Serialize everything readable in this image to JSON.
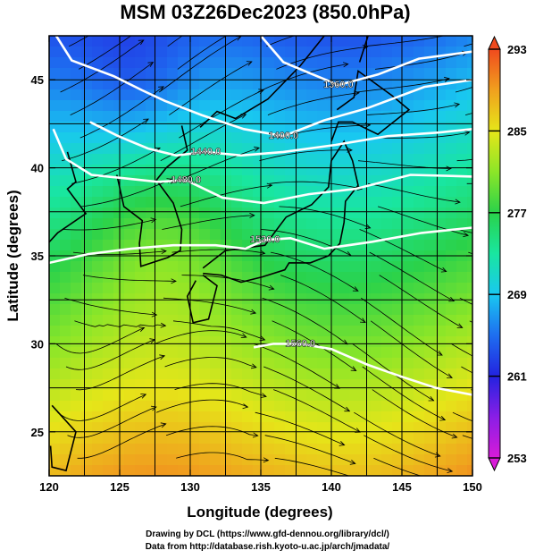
{
  "chart_data": {
    "type": "heatmap",
    "title": "MSM 03Z26Dec2023 (850.0hPa)",
    "xlabel": "Longitude (degrees)",
    "ylabel": "Latitude  (degrees)",
    "xlim": [
      120,
      150
    ],
    "ylim": [
      22.5,
      47.5
    ],
    "xticks": [
      120,
      125,
      130,
      135,
      140,
      145,
      150
    ],
    "yticks": [
      25,
      30,
      35,
      40,
      45
    ],
    "colorbar": {
      "min": 253,
      "max": 293,
      "ticks": [
        253,
        261,
        269,
        277,
        285,
        293
      ],
      "colors": [
        "#d81bd8",
        "#8a1ee6",
        "#2323e0",
        "#1e6ef0",
        "#19c8f0",
        "#19e6a0",
        "#2ad24a",
        "#8ce628",
        "#e6e619",
        "#f0a01e",
        "#f04a1e"
      ]
    },
    "contour_labels": [
      {
        "text": "1360.0",
        "lon": 140.5,
        "lat": 44.7
      },
      {
        "text": "1400.0",
        "lon": 136.6,
        "lat": 41.8
      },
      {
        "text": "1440.0",
        "lon": 131.1,
        "lat": 40.9
      },
      {
        "text": "1480.0",
        "lon": 129.7,
        "lat": 39.3
      },
      {
        "text": "1520.0",
        "lon": 135.3,
        "lat": 35.9
      },
      {
        "text": "1560.0",
        "lon": 137.8,
        "lat": 30.0
      }
    ],
    "contours": [
      {
        "level": "1360.0",
        "points": [
          [
            135.0,
            47.5
          ],
          [
            136.6,
            46.0
          ],
          [
            138.7,
            45.3
          ],
          [
            140.5,
            44.7
          ],
          [
            143.3,
            45.3
          ],
          [
            146.2,
            46.2
          ],
          [
            150.0,
            46.6
          ]
        ]
      },
      {
        "level": "1400.0",
        "points": [
          [
            120.5,
            47.5
          ],
          [
            121.6,
            46.1
          ],
          [
            124.6,
            45.2
          ],
          [
            126.6,
            44.4
          ],
          [
            128.2,
            43.8
          ],
          [
            130.8,
            43.0
          ],
          [
            133.8,
            42.2
          ],
          [
            136.6,
            41.8
          ],
          [
            139.5,
            42.7
          ],
          [
            142.6,
            43.4
          ],
          [
            146.6,
            44.6
          ],
          [
            150.0,
            45.0
          ]
        ]
      },
      {
        "level": "1440.0",
        "points": [
          [
            122.9,
            42.6
          ],
          [
            124.9,
            41.8
          ],
          [
            127.0,
            41.1
          ],
          [
            129.0,
            40.7
          ],
          [
            131.1,
            40.9
          ],
          [
            133.6,
            40.7
          ],
          [
            136.6,
            40.9
          ],
          [
            140.3,
            41.3
          ],
          [
            144.0,
            41.8
          ],
          [
            147.6,
            42.0
          ],
          [
            150.0,
            42.2
          ]
        ]
      },
      {
        "level": "1480.0",
        "points": [
          [
            120.3,
            42.2
          ],
          [
            121.2,
            40.5
          ],
          [
            123.0,
            39.6
          ],
          [
            125.4,
            39.4
          ],
          [
            127.7,
            39.2
          ],
          [
            129.7,
            39.3
          ],
          [
            132.3,
            38.3
          ],
          [
            135.2,
            38.0
          ],
          [
            138.4,
            38.5
          ],
          [
            141.7,
            38.8
          ],
          [
            145.6,
            39.6
          ],
          [
            150.0,
            39.5
          ]
        ]
      },
      {
        "level": "1520.0",
        "points": [
          [
            120.0,
            34.6
          ],
          [
            122.8,
            35.1
          ],
          [
            125.8,
            35.4
          ],
          [
            128.8,
            35.6
          ],
          [
            131.8,
            35.6
          ],
          [
            133.9,
            35.4
          ],
          [
            135.3,
            35.9
          ],
          [
            137.1,
            36.0
          ],
          [
            139.5,
            35.4
          ],
          [
            142.9,
            35.8
          ],
          [
            146.4,
            36.3
          ],
          [
            150.0,
            36.6
          ]
        ]
      },
      {
        "level": "1560.0",
        "points": [
          [
            134.5,
            29.8
          ],
          [
            135.9,
            30.0
          ],
          [
            137.8,
            30.0
          ],
          [
            140.0,
            29.7
          ],
          [
            142.6,
            28.8
          ],
          [
            145.1,
            28.1
          ],
          [
            147.4,
            27.5
          ],
          [
            150.0,
            27.1
          ]
        ]
      }
    ]
  },
  "credits": {
    "line1": "Drawing by DCL (https://www.gfd-dennou.org/library/dcl/)",
    "line2": "Data from http://database.rish.kyoto-u.ac.jp/arch/jmadata/"
  }
}
